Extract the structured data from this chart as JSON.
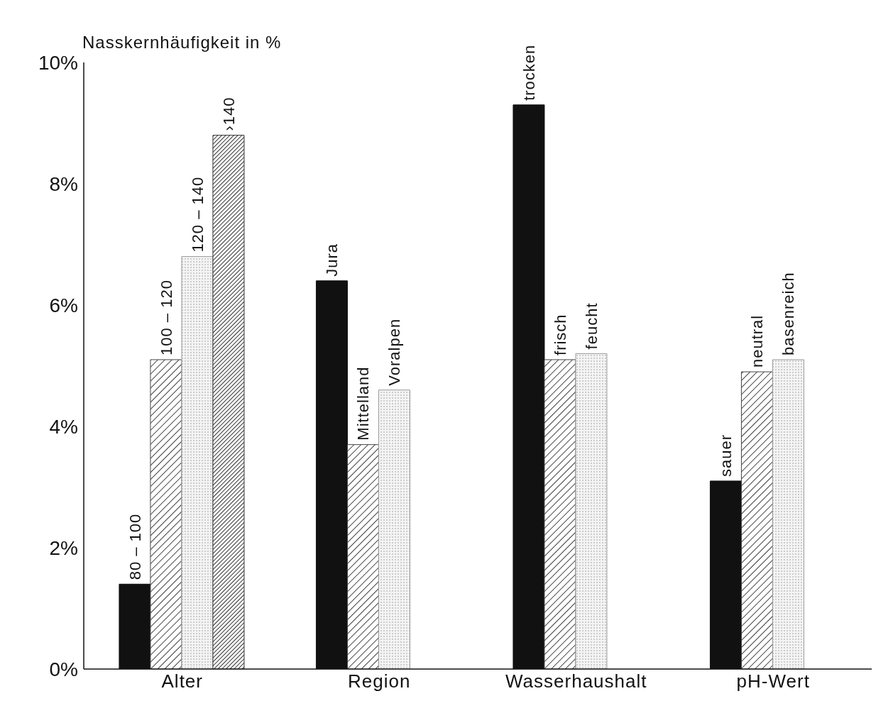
{
  "chart_data": {
    "type": "bar",
    "ylabel": "Nasskernhäufigkeit in %",
    "categories": [
      "Alter",
      "Region",
      "Wasserhaushalt",
      "pH-Wert"
    ],
    "ylim": [
      0,
      10
    ],
    "yticks": [
      {
        "value": 0,
        "label": "0%"
      },
      {
        "value": 2,
        "label": "2%"
      },
      {
        "value": 4,
        "label": "4%"
      },
      {
        "value": 6,
        "label": "6%"
      },
      {
        "value": 8,
        "label": "8%"
      },
      {
        "value": 10,
        "label": "10%"
      }
    ],
    "grid": false,
    "legend": false,
    "series": [
      {
        "color": "#111111",
        "values": [
          1.4,
          6.4,
          9.3,
          3.1
        ]
      },
      {
        "color": "#444444",
        "values": [
          5.1,
          3.7,
          5.1,
          4.9
        ]
      },
      {
        "color": "#999999",
        "values": [
          6.8,
          4.6,
          5.2,
          5.1
        ]
      },
      {
        "color": "#333333",
        "values": [
          8.8,
          null,
          null,
          null
        ]
      }
    ],
    "annotations": [
      "80 – 100",
      "100 – 120",
      "120 – 140",
      "›140",
      "Jura",
      "Mittelland",
      "Voralpen",
      "trocken",
      "frisch",
      "feucht",
      "sauer",
      "neutral",
      "basenreich"
    ]
  }
}
